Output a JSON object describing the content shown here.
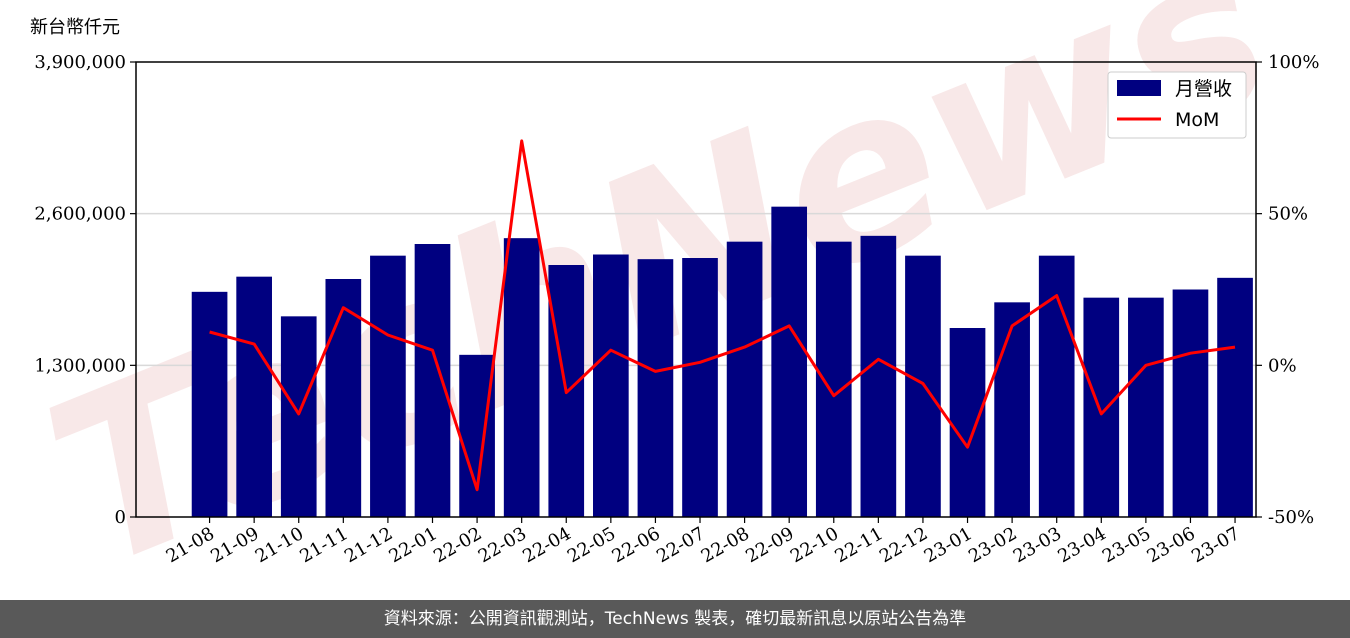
{
  "chart_data": {
    "type": "bar",
    "unit_label": "新台幣仟元",
    "categories": [
      "21-08",
      "21-09",
      "21-10",
      "21-11",
      "21-12",
      "22-01",
      "22-02",
      "22-03",
      "22-04",
      "22-05",
      "22-06",
      "22-07",
      "22-08",
      "22-09",
      "22-10",
      "22-11",
      "22-12",
      "23-01",
      "23-02",
      "23-03",
      "23-04",
      "23-05",
      "23-06",
      "23-07"
    ],
    "series": [
      {
        "name": "月營收",
        "type": "bar",
        "axis": "left",
        "color": "#000080",
        "values": [
          1930000,
          2060000,
          1720000,
          2040000,
          2240000,
          2340000,
          1390000,
          2390000,
          2160000,
          2250000,
          2210000,
          2220000,
          2360000,
          2660000,
          2360000,
          2410000,
          2240000,
          1620000,
          1840000,
          2240000,
          1880000,
          1880000,
          1950000,
          2050000
        ]
      },
      {
        "name": "MoM",
        "type": "line",
        "axis": "right",
        "color": "#ff0000",
        "values": [
          11,
          7,
          -16,
          19,
          10,
          5,
          -41,
          74,
          -9,
          5,
          -2,
          1,
          6,
          13,
          -10,
          2,
          -6,
          -27,
          13,
          23,
          -16,
          0,
          4,
          6
        ]
      }
    ],
    "y_left": {
      "ylim": [
        0,
        3900000
      ],
      "ticks": [
        "0",
        "1,300,000",
        "2,600,000",
        "3,900,000"
      ]
    },
    "y_right": {
      "ylim": [
        -50,
        100
      ],
      "ticks": [
        "-50%",
        "0%",
        "50%",
        "100%"
      ]
    },
    "grid": "horizontal",
    "legend": "top-right",
    "watermark": "TechNews"
  },
  "footer": {
    "text": "資料來源：公開資訊觀測站，TechNews 製表，確切最新訊息以原站公告為準"
  }
}
